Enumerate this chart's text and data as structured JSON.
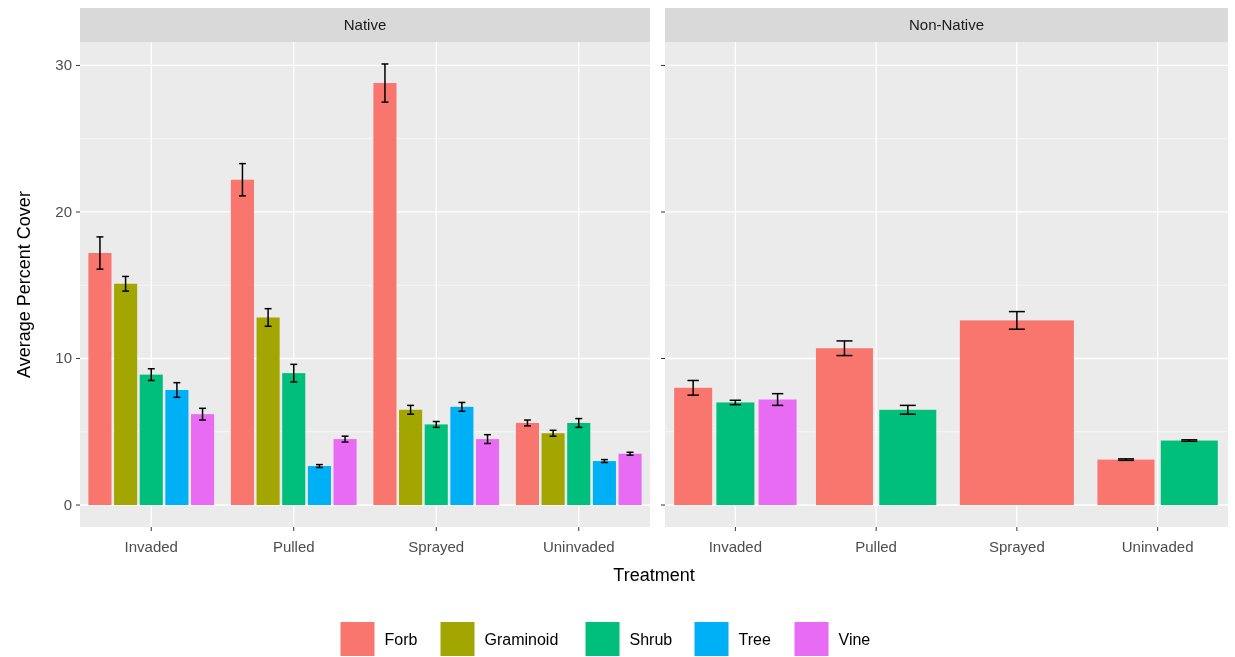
{
  "chart_data": [
    {
      "type": "bar",
      "title": "Native",
      "xlabel": "Treatment",
      "ylabel": "Average Percent Cover",
      "categories": [
        "Invaded",
        "Pulled",
        "Sprayed",
        "Uninvaded"
      ],
      "ylim": [
        -1.5,
        31.6
      ],
      "yticks": [
        0,
        10,
        20,
        30
      ],
      "grid": true,
      "legend": "bottom",
      "series": [
        {
          "name": "Forb",
          "color": "#f8766d",
          "values": [
            17.2,
            22.2,
            28.8,
            5.6
          ],
          "errors": [
            1.1,
            1.1,
            1.3,
            0.2
          ]
        },
        {
          "name": "Graminoid",
          "color": "#a3a500",
          "values": [
            15.1,
            12.8,
            6.5,
            4.9
          ],
          "errors": [
            0.5,
            0.6,
            0.3,
            0.2
          ]
        },
        {
          "name": "Shrub",
          "color": "#00bf7d",
          "values": [
            8.9,
            9.0,
            5.5,
            5.6
          ],
          "errors": [
            0.4,
            0.6,
            0.2,
            0.3
          ]
        },
        {
          "name": "Tree",
          "color": "#00b0f6",
          "values": [
            7.85,
            2.66,
            6.7,
            3.0
          ],
          "errors": [
            0.5,
            0.1,
            0.3,
            0.1
          ]
        },
        {
          "name": "Vine",
          "color": "#e76bf3",
          "values": [
            6.2,
            4.5,
            4.5,
            3.5
          ],
          "errors": [
            0.4,
            0.2,
            0.3,
            0.1
          ]
        }
      ]
    },
    {
      "type": "bar",
      "title": "Non-Native",
      "categories": [
        "Invaded",
        "Pulled",
        "Sprayed",
        "Uninvaded"
      ],
      "ylim": [
        -1.5,
        31.6
      ],
      "yticks": [
        0,
        10,
        20,
        30
      ],
      "grid": true,
      "tick_labels": "x",
      "series": [
        {
          "name": "Forb",
          "color": "#f8766d",
          "values": [
            8.0,
            10.7,
            12.6,
            3.1
          ],
          "errors": [
            0.5,
            0.5,
            0.6,
            0.05
          ]
        },
        {
          "name": "Shrub",
          "color": "#00bf7d",
          "values": [
            7.0,
            6.5,
            null,
            4.4
          ],
          "errors": [
            0.15,
            0.3,
            null,
            0.05
          ]
        },
        {
          "name": "Vine",
          "color": "#e76bf3",
          "values": [
            7.2,
            null,
            null,
            null
          ],
          "errors": [
            0.4,
            null,
            null,
            null
          ]
        }
      ]
    }
  ]
}
